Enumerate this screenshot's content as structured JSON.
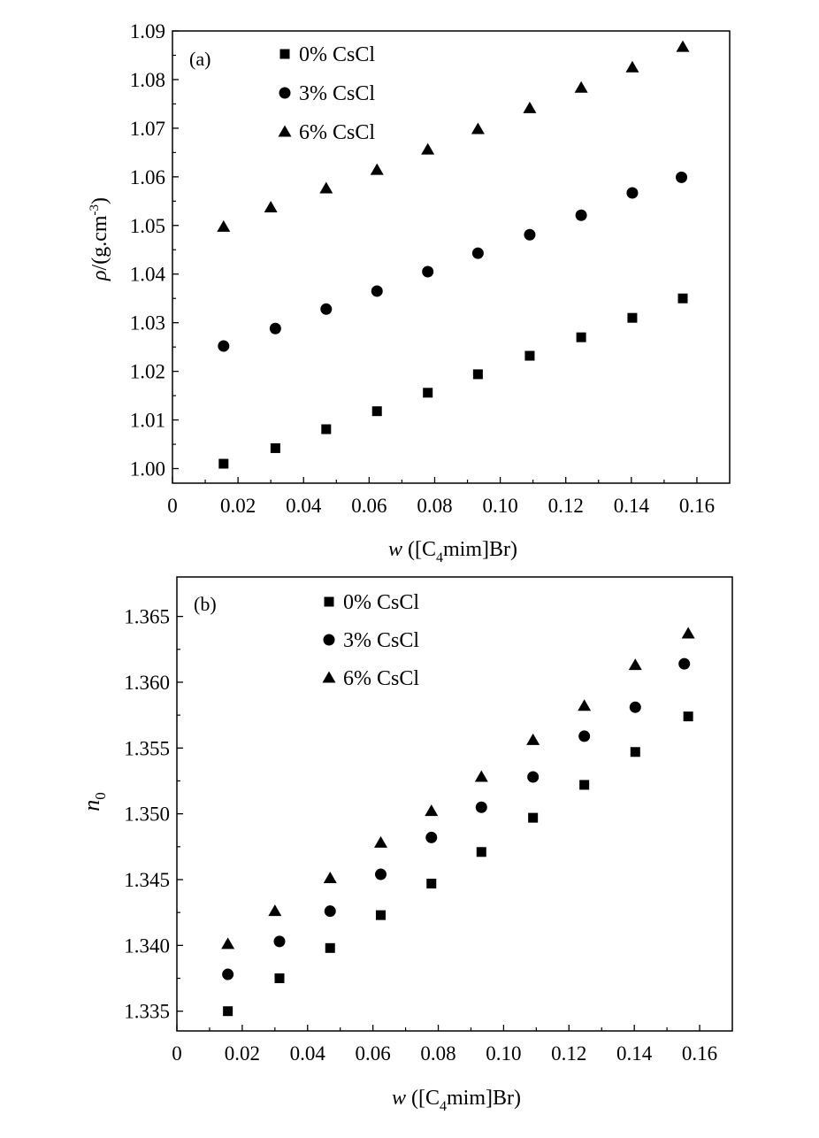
{
  "chart_data": [
    {
      "type": "scatter",
      "panel_label": "(a)",
      "xlabel_var": "w",
      "xlabel_paren_open": "([C",
      "xlabel_sub": "4",
      "xlabel_rest": "mim]Br)",
      "ylabel_sym": "ρ",
      "ylabel_unit": "/(g.cm",
      "ylabel_sup": "-3",
      "ylabel_close": ")",
      "xlim": [
        0,
        0.17
      ],
      "ylim": [
        0.997,
        1.09
      ],
      "xticks": [
        0,
        0.02,
        0.04,
        0.06,
        0.08,
        0.1,
        0.12,
        0.14,
        0.16
      ],
      "xtick_labels": [
        "0",
        "0.02",
        "0.04",
        "0.06",
        "0.08",
        "0.10",
        "0.12",
        "0.14",
        "0.16"
      ],
      "yticks": [
        1.0,
        1.01,
        1.02,
        1.03,
        1.04,
        1.05,
        1.06,
        1.07,
        1.08,
        1.09
      ],
      "ytick_labels": [
        "1.00",
        "1.01",
        "1.02",
        "1.03",
        "1.04",
        "1.05",
        "1.06",
        "1.07",
        "1.08",
        "1.09"
      ],
      "legend_position": "top-left",
      "grid": false,
      "series": [
        {
          "name": "0% CsCl",
          "marker": "square",
          "x": [
            0.0156,
            0.0314,
            0.0469,
            0.0624,
            0.0779,
            0.0932,
            0.109,
            0.1247,
            0.1403,
            0.1557
          ],
          "y": [
            1.001,
            1.0042,
            1.0081,
            1.0118,
            1.0156,
            1.0194,
            1.0232,
            1.027,
            1.031,
            1.035
          ]
        },
        {
          "name": "3% CsCl",
          "marker": "circle",
          "x": [
            0.0156,
            0.0314,
            0.0469,
            0.0624,
            0.0779,
            0.0932,
            0.109,
            0.1247,
            0.1403,
            0.1553
          ],
          "y": [
            1.0252,
            1.0288,
            1.0328,
            1.0365,
            1.0405,
            1.0443,
            1.0481,
            1.0521,
            1.0567,
            1.0599
          ]
        },
        {
          "name": "6% CsCl",
          "marker": "triangle",
          "x": [
            0.0156,
            0.03,
            0.0469,
            0.0624,
            0.0779,
            0.0932,
            0.109,
            0.1247,
            0.1403,
            0.1557
          ],
          "y": [
            1.0497,
            1.0537,
            1.0576,
            1.0614,
            1.0656,
            1.0698,
            1.0741,
            1.0783,
            1.0825,
            1.0867
          ]
        }
      ]
    },
    {
      "type": "scatter",
      "panel_label": "(b)",
      "xlabel_var": "w",
      "xlabel_paren_open": "([C",
      "xlabel_sub": "4",
      "xlabel_rest": "mim]Br)",
      "ylabel_sym": "n",
      "ylabel_sub": "0",
      "xlim": [
        0,
        0.17
      ],
      "ylim": [
        1.3335,
        1.368
      ],
      "xticks": [
        0,
        0.02,
        0.04,
        0.06,
        0.08,
        0.1,
        0.12,
        0.14,
        0.16
      ],
      "xtick_labels": [
        "0",
        "0.02",
        "0.04",
        "0.06",
        "0.08",
        "0.10",
        "0.12",
        "0.14",
        "0.16"
      ],
      "yticks": [
        1.335,
        1.34,
        1.345,
        1.35,
        1.355,
        1.36,
        1.365
      ],
      "ytick_labels": [
        "1.335",
        "1.340",
        "1.345",
        "1.350",
        "1.355",
        "1.360",
        "1.365"
      ],
      "legend_position": "top-left",
      "grid": false,
      "series": [
        {
          "name": "0% CsCl",
          "marker": "square",
          "x": [
            0.0156,
            0.0314,
            0.0469,
            0.0624,
            0.0779,
            0.0932,
            0.109,
            0.1247,
            0.1403,
            0.1565
          ],
          "y": [
            1.335,
            1.3375,
            1.3398,
            1.3423,
            1.3447,
            1.3471,
            1.3497,
            1.3522,
            1.3547,
            1.3574
          ]
        },
        {
          "name": "3% CsCl",
          "marker": "circle",
          "x": [
            0.0156,
            0.0314,
            0.0469,
            0.0624,
            0.0779,
            0.0932,
            0.109,
            0.1247,
            0.1403,
            0.1553
          ],
          "y": [
            1.3378,
            1.3403,
            1.3426,
            1.3454,
            1.3482,
            1.3505,
            1.3528,
            1.3559,
            1.3581,
            1.3614
          ]
        },
        {
          "name": "6% CsCl",
          "marker": "triangle",
          "x": [
            0.0156,
            0.03,
            0.0469,
            0.0624,
            0.0779,
            0.0932,
            0.109,
            0.1247,
            0.1403,
            0.1565
          ],
          "y": [
            1.3401,
            1.3426,
            1.3451,
            1.3478,
            1.3502,
            1.3528,
            1.3556,
            1.3582,
            1.3613,
            1.3637
          ]
        }
      ]
    }
  ]
}
